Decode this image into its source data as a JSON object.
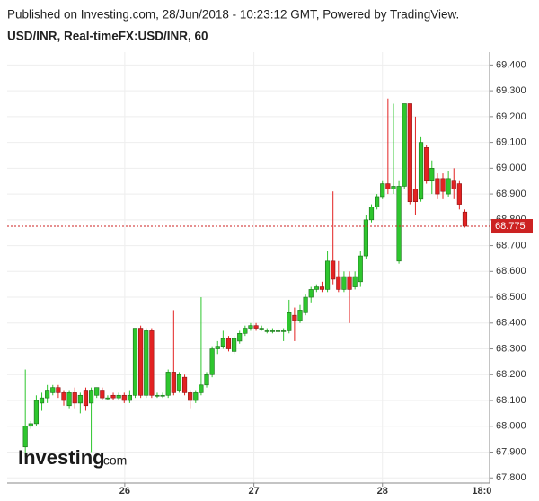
{
  "chart_data": {
    "type": "candlestick",
    "header": "Published on Investing.com, 28/Jun/2018 - 10:23:12 GMT, Powered by TradingView.",
    "title": "USD/INR, Real-timeFX:USD/INR, 60",
    "logo": "Investing",
    "logo_suffix": ".com",
    "up_color": "#2ec62e",
    "down_color": "#e32222",
    "open": [
      67.92,
      68.0,
      68.01,
      68.09,
      68.11,
      68.13,
      68.15,
      68.13,
      68.08,
      68.13,
      68.09,
      68.14,
      68.09,
      68.12,
      68.14,
      68.11,
      68.12,
      68.11,
      68.12,
      68.1,
      68.12,
      68.38,
      68.12,
      68.37,
      68.12,
      68.12,
      68.12,
      68.21,
      68.14,
      68.19,
      68.13,
      68.1,
      68.13,
      68.16,
      68.2,
      68.3,
      68.31,
      68.34,
      68.29,
      68.33,
      68.36,
      68.38,
      68.39,
      68.38,
      68.37,
      68.37,
      68.37,
      68.37,
      68.37,
      68.43,
      68.41,
      68.44,
      68.5,
      68.53,
      68.54,
      68.53,
      68.64,
      68.58,
      68.53,
      68.58,
      68.54,
      68.56,
      68.66,
      68.8,
      68.85,
      68.89,
      68.94,
      68.92,
      68.64,
      68.93,
      69.25,
      68.92,
      68.88,
      69.08,
      68.95,
      68.96,
      68.96,
      68.9,
      68.95,
      68.94,
      68.83
    ],
    "high": [
      68.22,
      68.02,
      68.12,
      68.13,
      68.16,
      68.16,
      68.16,
      68.14,
      68.14,
      68.15,
      68.13,
      68.15,
      68.15,
      68.15,
      68.15,
      68.12,
      68.13,
      68.13,
      68.13,
      68.14,
      68.38,
      68.39,
      68.38,
      68.38,
      68.13,
      68.13,
      68.22,
      68.45,
      68.21,
      68.2,
      68.14,
      68.14,
      68.5,
      68.21,
      68.31,
      68.33,
      68.37,
      68.35,
      68.35,
      68.37,
      68.39,
      68.4,
      68.4,
      68.39,
      68.38,
      68.38,
      68.38,
      68.38,
      68.49,
      68.46,
      68.47,
      68.51,
      68.54,
      68.55,
      68.56,
      68.68,
      68.91,
      68.64,
      68.6,
      68.6,
      68.6,
      68.68,
      68.82,
      68.86,
      68.9,
      68.95,
      69.27,
      69.25,
      68.95,
      69.25,
      69.25,
      69.2,
      69.12,
      69.09,
      69.03,
      68.98,
      68.98,
      68.99,
      69.0,
      68.95,
      68.84
    ],
    "low": [
      67.88,
      67.99,
      68.0,
      68.06,
      68.09,
      68.12,
      68.11,
      68.08,
      68.07,
      68.07,
      68.05,
      68.06,
      67.9,
      68.11,
      68.1,
      68.1,
      68.1,
      68.1,
      68.09,
      68.09,
      68.11,
      68.11,
      68.11,
      68.11,
      68.11,
      68.11,
      68.11,
      68.12,
      68.13,
      68.12,
      68.07,
      68.09,
      68.12,
      68.15,
      68.19,
      68.28,
      68.3,
      68.29,
      68.28,
      68.32,
      68.35,
      68.37,
      68.37,
      68.37,
      68.36,
      68.36,
      68.36,
      68.33,
      68.36,
      68.33,
      68.4,
      68.43,
      68.48,
      68.52,
      68.52,
      68.52,
      68.55,
      68.52,
      68.52,
      68.4,
      68.53,
      68.54,
      68.65,
      68.79,
      68.84,
      68.88,
      68.9,
      68.9,
      68.63,
      68.92,
      68.86,
      68.82,
      68.87,
      68.94,
      68.9,
      68.88,
      68.88,
      68.89,
      68.88,
      68.84,
      68.77
    ],
    "close": [
      68.0,
      68.01,
      68.1,
      68.11,
      68.14,
      68.15,
      68.13,
      68.1,
      68.13,
      68.09,
      68.12,
      68.08,
      68.14,
      68.15,
      68.11,
      68.11,
      68.11,
      68.12,
      68.1,
      68.12,
      68.38,
      68.12,
      68.37,
      68.12,
      68.12,
      68.12,
      68.21,
      68.13,
      68.2,
      68.13,
      68.1,
      68.13,
      68.16,
      68.2,
      68.3,
      68.31,
      68.34,
      68.3,
      68.34,
      68.36,
      68.38,
      68.39,
      68.38,
      68.38,
      68.37,
      68.37,
      68.37,
      68.37,
      68.44,
      68.41,
      68.45,
      68.5,
      68.53,
      68.54,
      68.53,
      68.64,
      68.57,
      68.53,
      68.58,
      68.53,
      68.58,
      68.66,
      68.8,
      68.85,
      68.89,
      68.94,
      68.92,
      68.93,
      68.93,
      69.25,
      68.87,
      68.87,
      69.1,
      68.95,
      69.0,
      68.9,
      68.91,
      68.96,
      68.92,
      68.86,
      68.775
    ],
    "current_price": 68.775,
    "current_price_label": "68.775",
    "current_color": "#cc2222",
    "xlim": [
      -3.3,
      84.5
    ],
    "xticks": [
      {
        "value": 18.1,
        "label": "26"
      },
      {
        "value": 41.6,
        "label": "27"
      },
      {
        "value": 65.0,
        "label": "28"
      },
      {
        "value": 83.1,
        "label": "18:0"
      }
    ],
    "ylim": [
      67.78,
      69.45
    ],
    "yticks": [
      {
        "value": 67.8,
        "label": "67.800"
      },
      {
        "value": 67.9,
        "label": "67.900"
      },
      {
        "value": 68.0,
        "label": "68.000"
      },
      {
        "value": 68.1,
        "label": "68.100"
      },
      {
        "value": 68.2,
        "label": "68.200"
      },
      {
        "value": 68.3,
        "label": "68.300"
      },
      {
        "value": 68.4,
        "label": "68.400"
      },
      {
        "value": 68.5,
        "label": "68.500"
      },
      {
        "value": 68.6,
        "label": "68.600"
      },
      {
        "value": 68.7,
        "label": "68.700"
      },
      {
        "value": 68.8,
        "label": "68.800"
      },
      {
        "value": 68.9,
        "label": "68.900"
      },
      {
        "value": 69.0,
        "label": "69.000"
      },
      {
        "value": 69.1,
        "label": "69.100"
      },
      {
        "value": 69.2,
        "label": "69.200"
      },
      {
        "value": 69.3,
        "label": "69.300"
      },
      {
        "value": 69.4,
        "label": "69.400"
      }
    ],
    "grid": true
  }
}
